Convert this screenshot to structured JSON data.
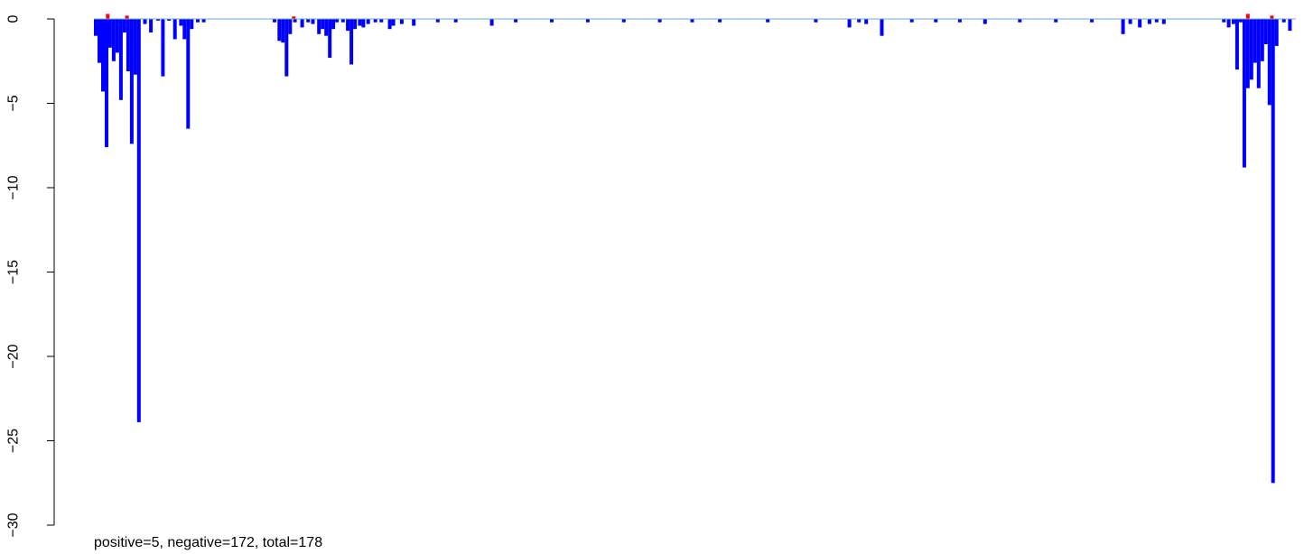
{
  "chart_data": {
    "type": "bar",
    "subtype": "dense-signed-bars",
    "ylim": [
      -30,
      0.5
    ],
    "yticks": [
      0,
      -5,
      -10,
      -15,
      -20,
      -25,
      -30
    ],
    "ytick_labels": [
      "0",
      "−5",
      "−10",
      "−15",
      "−20",
      "−25",
      "−30"
    ],
    "grid": false,
    "legend": "none",
    "colors": {
      "negative": "#0000ff",
      "positive": "#ff0000",
      "baseline": "#6fa8dc"
    },
    "summary_text": "positive=5, negative=172, total=178",
    "x_range": [
      0,
      1
    ],
    "series": [
      {
        "name": "negative",
        "points": [
          [
            0.0,
            -1.0
          ],
          [
            0.003,
            -2.6
          ],
          [
            0.006,
            -4.3
          ],
          [
            0.009,
            -7.6
          ],
          [
            0.012,
            -1.7
          ],
          [
            0.015,
            -2.5
          ],
          [
            0.018,
            -2.0
          ],
          [
            0.021,
            -4.8
          ],
          [
            0.024,
            -0.8
          ],
          [
            0.027,
            -3.1
          ],
          [
            0.03,
            -7.4
          ],
          [
            0.033,
            -3.3
          ],
          [
            0.036,
            -23.9
          ],
          [
            0.041,
            -0.3
          ],
          [
            0.046,
            -0.8
          ],
          [
            0.052,
            -0.1
          ],
          [
            0.056,
            -3.4
          ],
          [
            0.061,
            -0.1
          ],
          [
            0.066,
            -1.2
          ],
          [
            0.071,
            -0.4
          ],
          [
            0.074,
            -1.2
          ],
          [
            0.077,
            -6.5
          ],
          [
            0.08,
            -0.6
          ],
          [
            0.085,
            -0.2
          ],
          [
            0.09,
            -0.2
          ],
          [
            0.149,
            -0.2
          ],
          [
            0.153,
            -1.3
          ],
          [
            0.156,
            -1.4
          ],
          [
            0.159,
            -3.4
          ],
          [
            0.162,
            -0.9
          ],
          [
            0.166,
            -0.2
          ],
          [
            0.172,
            -0.5
          ],
          [
            0.177,
            -0.2
          ],
          [
            0.181,
            -0.3
          ],
          [
            0.186,
            -0.9
          ],
          [
            0.189,
            -0.6
          ],
          [
            0.192,
            -1.0
          ],
          [
            0.195,
            -2.3
          ],
          [
            0.198,
            -0.6
          ],
          [
            0.201,
            -0.2
          ],
          [
            0.206,
            -0.2
          ],
          [
            0.21,
            -0.7
          ],
          [
            0.213,
            -2.7
          ],
          [
            0.216,
            -0.6
          ],
          [
            0.22,
            -0.4
          ],
          [
            0.223,
            -0.5
          ],
          [
            0.227,
            -0.3
          ],
          [
            0.233,
            -0.2
          ],
          [
            0.238,
            -0.2
          ],
          [
            0.245,
            -0.6
          ],
          [
            0.248,
            -0.4
          ],
          [
            0.255,
            -0.3
          ],
          [
            0.265,
            -0.4
          ],
          [
            0.285,
            -0.2
          ],
          [
            0.3,
            -0.2
          ],
          [
            0.33,
            -0.4
          ],
          [
            0.35,
            -0.2
          ],
          [
            0.38,
            -0.2
          ],
          [
            0.41,
            -0.2
          ],
          [
            0.44,
            -0.2
          ],
          [
            0.47,
            -0.2
          ],
          [
            0.497,
            -0.2
          ],
          [
            0.52,
            -0.2
          ],
          [
            0.56,
            -0.2
          ],
          [
            0.6,
            -0.2
          ],
          [
            0.628,
            -0.5
          ],
          [
            0.636,
            -0.2
          ],
          [
            0.642,
            -0.3
          ],
          [
            0.655,
            -1.0
          ],
          [
            0.68,
            -0.2
          ],
          [
            0.7,
            -0.2
          ],
          [
            0.72,
            -0.2
          ],
          [
            0.741,
            -0.3
          ],
          [
            0.77,
            -0.2
          ],
          [
            0.8,
            -0.2
          ],
          [
            0.83,
            -0.2
          ],
          [
            0.856,
            -0.9
          ],
          [
            0.862,
            -0.3
          ],
          [
            0.87,
            -0.5
          ],
          [
            0.878,
            -0.3
          ],
          [
            0.884,
            -0.2
          ],
          [
            0.89,
            -0.3
          ],
          [
            0.94,
            -0.2
          ],
          [
            0.944,
            -0.5
          ],
          [
            0.948,
            -0.3
          ],
          [
            0.951,
            -3.0
          ],
          [
            0.954,
            -0.2
          ],
          [
            0.957,
            -8.8
          ],
          [
            0.96,
            -4.1
          ],
          [
            0.963,
            -3.6
          ],
          [
            0.966,
            -2.6
          ],
          [
            0.969,
            -4.1
          ],
          [
            0.972,
            -2.5
          ],
          [
            0.975,
            -1.5
          ],
          [
            0.978,
            -5.1
          ],
          [
            0.981,
            -27.5
          ],
          [
            0.984,
            -1.6
          ],
          [
            0.99,
            -0.2
          ],
          [
            0.995,
            -0.7
          ]
        ]
      },
      {
        "name": "positive",
        "points": [
          [
            0.01,
            0.3
          ],
          [
            0.026,
            0.2
          ],
          [
            0.165,
            0.15
          ],
          [
            0.96,
            0.3
          ],
          [
            0.98,
            0.2
          ]
        ]
      }
    ]
  }
}
